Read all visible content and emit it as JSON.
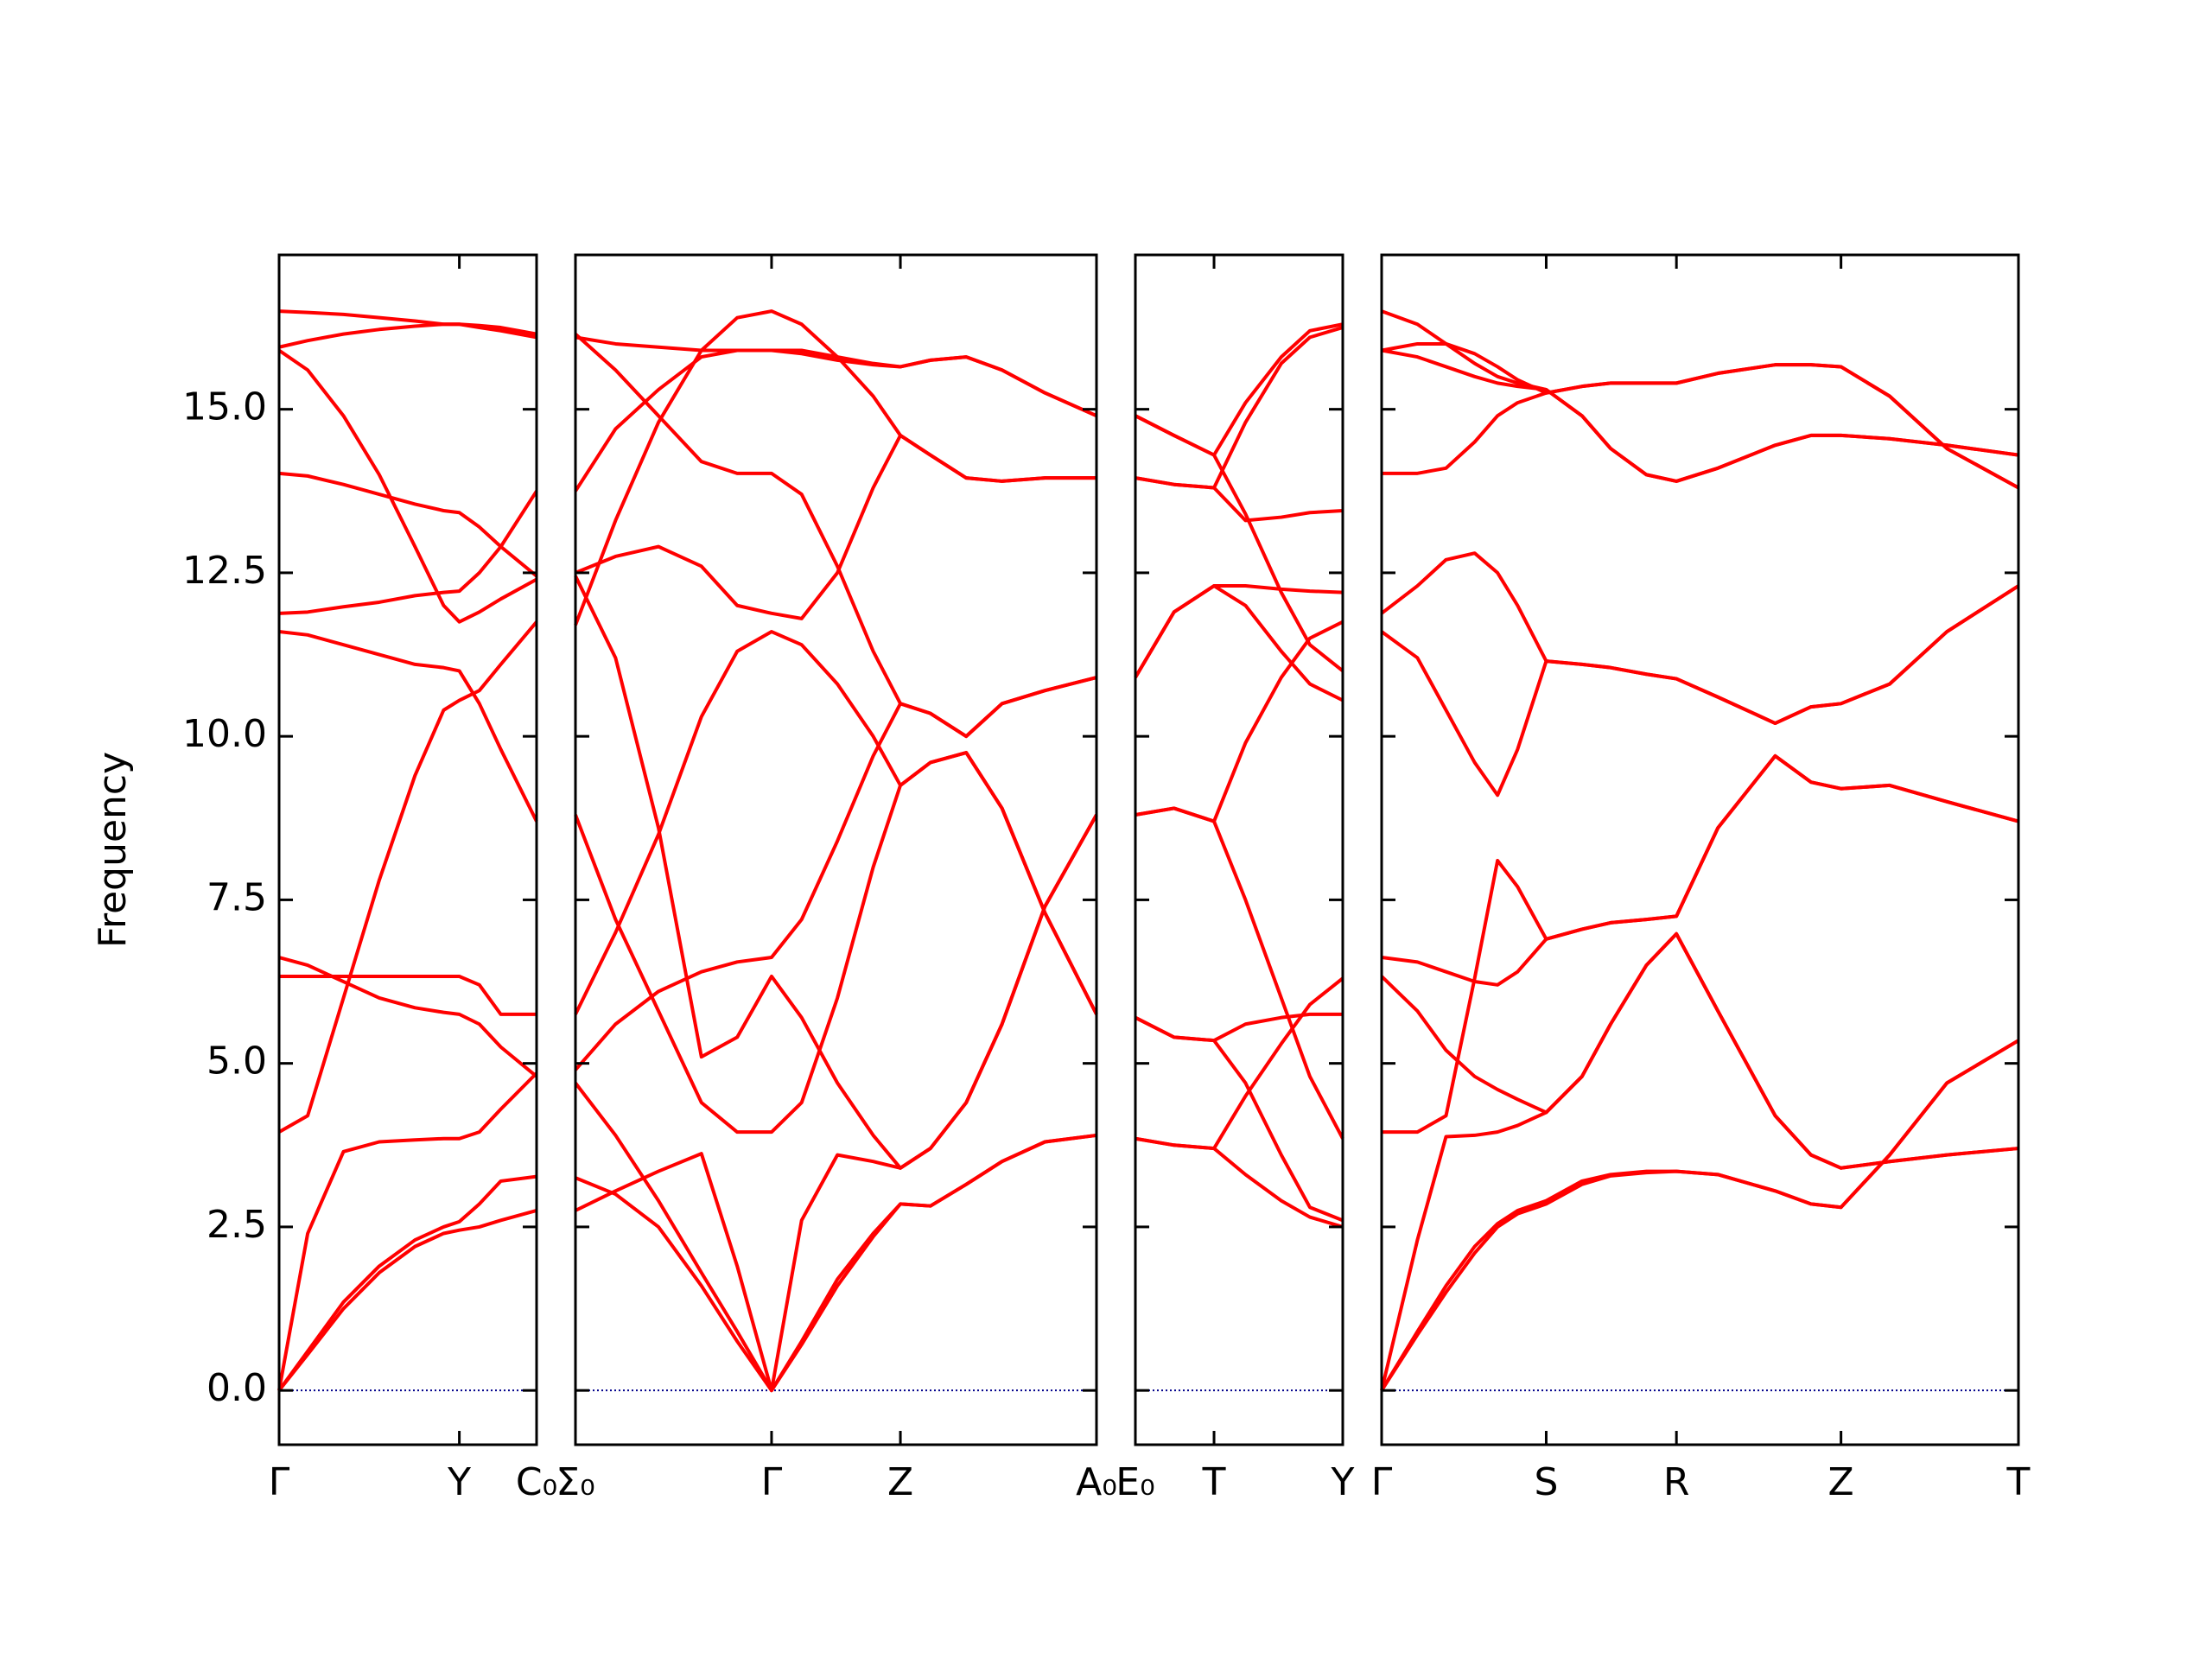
{
  "chart_data": [
    {
      "type": "line",
      "ylabel": "Frequency",
      "color": "#ff0000",
      "xlim": [
        0,
        1.8
      ],
      "ylim": [
        -0.83,
        17.36
      ],
      "xticks": [
        {
          "value": 0,
          "label": "Γ"
        },
        {
          "value": 1.26,
          "label": "Y"
        },
        {
          "value": 1.8,
          "label": "C₀"
        }
      ],
      "yticks": [
        {
          "value": 0,
          "label": "0.0"
        },
        2.5,
        {
          "value": 5,
          "label": "5.0"
        },
        7.5,
        {
          "value": 10,
          "label": "10.0"
        },
        12.5,
        {
          "value": 15,
          "label": "15.0"
        }
      ],
      "ytick_labels": true,
      "hline": {
        "y": 0,
        "color": "#00008b",
        "style": "dotted"
      },
      "x": [
        0,
        0.2,
        0.45,
        0.7,
        0.95,
        1.15,
        1.26,
        1.4,
        1.55,
        1.8
      ],
      "series": [
        {
          "values": [
            0,
            0.55,
            1.25,
            1.8,
            2.2,
            2.4,
            2.45,
            2.5,
            2.6,
            2.75
          ]
        },
        {
          "values": [
            0,
            0.6,
            1.35,
            1.9,
            2.3,
            2.5,
            2.58,
            2.85,
            3.2,
            3.27
          ]
        },
        {
          "values": [
            0,
            2.4,
            3.65,
            3.8,
            3.83,
            3.85,
            3.85,
            3.95,
            4.3,
            4.85
          ]
        },
        {
          "values": [
            3.95,
            4.2,
            6.0,
            7.8,
            9.4,
            10.4,
            10.55,
            10.7,
            11.1,
            11.75
          ]
        },
        {
          "values": [
            6.33,
            6.33,
            6.33,
            6.33,
            6.33,
            6.33,
            6.33,
            6.2,
            5.75,
            5.75
          ]
        },
        {
          "values": [
            6.62,
            6.5,
            6.25,
            6.0,
            5.85,
            5.78,
            5.75,
            5.6,
            5.25,
            4.8
          ]
        },
        {
          "values": [
            11.6,
            11.55,
            11.4,
            11.25,
            11.1,
            11.05,
            11.0,
            10.5,
            9.8,
            8.7
          ]
        },
        {
          "values": [
            11.88,
            11.9,
            11.98,
            12.05,
            12.15,
            12.2,
            12.22,
            12.5,
            12.9,
            13.75
          ]
        },
        {
          "values": [
            14.02,
            13.98,
            13.85,
            13.7,
            13.55,
            13.45,
            13.42,
            13.2,
            12.9,
            12.45
          ]
        },
        {
          "values": [
            15.9,
            15.6,
            14.9,
            14.0,
            12.9,
            12.0,
            11.75,
            11.9,
            12.1,
            12.4
          ]
        },
        {
          "values": [
            15.95,
            16.05,
            16.15,
            16.22,
            16.27,
            16.3,
            16.3,
            16.28,
            16.25,
            16.15
          ]
        },
        {
          "values": [
            16.5,
            16.48,
            16.45,
            16.4,
            16.35,
            16.3,
            16.3,
            16.25,
            16.2,
            16.1
          ]
        }
      ]
    },
    {
      "type": "line",
      "color": "#ff0000",
      "xlim": [
        0,
        3.64
      ],
      "ylim": [
        -0.83,
        17.36
      ],
      "xticks": [
        {
          "value": 0,
          "label": "Σ₀"
        },
        {
          "value": 1.37,
          "label": "Γ"
        },
        {
          "value": 2.27,
          "label": "Z"
        },
        {
          "value": 3.64,
          "label": "A₀"
        }
      ],
      "yticks": [
        0,
        2.5,
        5,
        7.5,
        10,
        12.5,
        15
      ],
      "ytick_labels": false,
      "hline": {
        "y": 0,
        "color": "#00008b",
        "style": "dotted"
      },
      "x": [
        0,
        0.28,
        0.58,
        0.88,
        1.13,
        1.37,
        1.58,
        1.83,
        2.08,
        2.27,
        2.48,
        2.73,
        2.98,
        3.28,
        3.64
      ],
      "series": [
        {
          "values": [
            2.75,
            3.05,
            3.35,
            3.62,
            1.9,
            0,
            0.75,
            1.7,
            2.4,
            2.85,
            2.82,
            3.15,
            3.5,
            3.8,
            3.9
          ]
        },
        {
          "values": [
            3.25,
            3.0,
            2.5,
            1.6,
            0.75,
            0,
            0.7,
            1.6,
            2.35,
            2.85,
            2.82,
            3.15,
            3.5,
            3.8,
            3.9
          ]
        },
        {
          "values": [
            4.7,
            3.9,
            2.9,
            1.8,
            0.9,
            0,
            2.6,
            3.6,
            3.5,
            3.4,
            3.7,
            4.4,
            5.6,
            7.4,
            8.8
          ]
        },
        {
          "values": [
            4.9,
            5.6,
            6.1,
            6.4,
            6.55,
            6.62,
            7.2,
            8.4,
            9.7,
            10.5,
            10.35,
            10.0,
            10.5,
            10.7,
            10.9
          ]
        },
        {
          "values": [
            8.8,
            7.2,
            5.8,
            4.4,
            3.95,
            3.95,
            4.4,
            6.0,
            8.0,
            9.25,
            9.6,
            9.75,
            8.9,
            7.3,
            5.75
          ]
        },
        {
          "values": [
            12.45,
            11.2,
            8.6,
            5.1,
            5.4,
            6.33,
            5.7,
            4.7,
            3.9,
            3.4,
            3.7,
            4.4,
            5.6,
            7.4,
            8.8
          ]
        },
        {
          "values": [
            5.75,
            7.0,
            8.5,
            10.3,
            11.3,
            11.6,
            11.4,
            10.8,
            10.0,
            9.25,
            9.6,
            9.75,
            8.9,
            7.3,
            5.75
          ]
        },
        {
          "values": [
            11.7,
            13.3,
            14.8,
            15.9,
            16.4,
            16.5,
            16.3,
            15.8,
            15.2,
            14.6,
            14.3,
            13.95,
            13.9,
            13.95,
            13.95
          ]
        },
        {
          "values": [
            12.5,
            12.75,
            12.9,
            12.6,
            12.0,
            11.88,
            11.8,
            12.5,
            13.8,
            14.6,
            14.3,
            13.95,
            13.9,
            13.95,
            13.95
          ]
        },
        {
          "values": [
            13.75,
            14.7,
            15.3,
            15.8,
            15.9,
            15.9,
            15.85,
            15.75,
            15.68,
            15.65,
            15.75,
            15.8,
            15.6,
            15.25,
            14.9
          ]
        },
        {
          "values": [
            16.15,
            15.6,
            14.9,
            14.2,
            14.02,
            14.02,
            13.7,
            12.6,
            11.3,
            10.5,
            10.35,
            10.0,
            10.5,
            10.7,
            10.9
          ]
        },
        {
          "values": [
            16.1,
            16.0,
            15.95,
            15.9,
            15.9,
            15.9,
            15.9,
            15.8,
            15.7,
            15.65,
            15.75,
            15.8,
            15.6,
            15.25,
            14.9
          ]
        }
      ]
    },
    {
      "type": "line",
      "color": "#ff0000",
      "xlim": [
        0,
        1.45
      ],
      "ylim": [
        -0.83,
        17.36
      ],
      "xticks": [
        {
          "value": 0,
          "label": "E₀"
        },
        {
          "value": 0.55,
          "label": "T"
        },
        {
          "value": 1.45,
          "label": "Y"
        }
      ],
      "yticks": [
        0,
        2.5,
        5,
        7.5,
        10,
        12.5,
        15
      ],
      "ytick_labels": false,
      "hline": {
        "y": 0,
        "color": "#00008b",
        "style": "dotted"
      },
      "x": [
        0,
        0.27,
        0.55,
        0.77,
        1.02,
        1.22,
        1.45
      ],
      "series": [
        {
          "values": [
            3.85,
            3.75,
            3.7,
            3.3,
            2.9,
            2.65,
            2.5
          ]
        },
        {
          "values": [
            3.85,
            3.75,
            3.7,
            4.5,
            5.3,
            5.9,
            6.3
          ]
        },
        {
          "values": [
            5.7,
            5.4,
            5.35,
            5.6,
            5.7,
            5.75,
            5.75
          ]
        },
        {
          "values": [
            5.7,
            5.4,
            5.35,
            4.7,
            3.6,
            2.8,
            2.6
          ]
        },
        {
          "values": [
            8.8,
            8.9,
            8.7,
            7.5,
            6.0,
            4.8,
            3.85
          ]
        },
        {
          "values": [
            8.8,
            8.9,
            8.7,
            9.9,
            10.9,
            11.5,
            11.75
          ]
        },
        {
          "values": [
            10.9,
            11.9,
            12.3,
            12.3,
            12.25,
            12.22,
            12.2
          ]
        },
        {
          "values": [
            10.9,
            11.9,
            12.3,
            12.0,
            11.3,
            10.8,
            10.55
          ]
        },
        {
          "values": [
            13.95,
            13.85,
            13.8,
            13.3,
            13.35,
            13.42,
            13.45
          ]
        },
        {
          "values": [
            13.95,
            13.85,
            13.8,
            14.8,
            15.7,
            16.1,
            16.25
          ]
        },
        {
          "values": [
            14.9,
            14.6,
            14.3,
            13.4,
            12.2,
            11.4,
            11.0
          ]
        },
        {
          "values": [
            14.9,
            14.6,
            14.3,
            15.1,
            15.8,
            16.2,
            16.3
          ]
        }
      ]
    },
    {
      "type": "line",
      "color": "#ff0000",
      "xlim": [
        0,
        4.45
      ],
      "ylim": [
        -0.83,
        17.36
      ],
      "xticks": [
        {
          "value": 0,
          "label": "Γ"
        },
        {
          "value": 1.15,
          "label": "S"
        },
        {
          "value": 2.06,
          "label": "R"
        },
        {
          "value": 3.21,
          "label": "Z"
        },
        {
          "value": 4.45,
          "label": "T"
        }
      ],
      "yticks": [
        0,
        2.5,
        5,
        7.5,
        10,
        12.5,
        15
      ],
      "ytick_labels": false,
      "hline": {
        "y": 0,
        "color": "#00008b",
        "style": "dotted"
      },
      "x": [
        0,
        0.25,
        0.45,
        0.65,
        0.81,
        0.95,
        1.15,
        1.4,
        1.6,
        1.85,
        2.06,
        2.35,
        2.75,
        3.0,
        3.21,
        3.55,
        3.95,
        4.45
      ],
      "series": [
        {
          "values": [
            0,
            0.9,
            1.6,
            2.2,
            2.55,
            2.75,
            2.9,
            3.2,
            3.3,
            3.35,
            3.35,
            3.3,
            3.05,
            2.85,
            2.8,
            3.6,
            4.7,
            5.35
          ]
        },
        {
          "values": [
            0,
            0.85,
            1.5,
            2.1,
            2.5,
            2.7,
            2.85,
            3.15,
            3.28,
            3.33,
            3.35,
            3.3,
            3.05,
            2.85,
            2.8,
            3.6,
            4.7,
            5.35
          ]
        },
        {
          "values": [
            0,
            2.3,
            3.88,
            3.9,
            3.95,
            4.05,
            4.25,
            4.8,
            5.6,
            6.5,
            6.98,
            5.8,
            4.2,
            3.6,
            3.4,
            3.5,
            3.6,
            3.7
          ]
        },
        {
          "values": [
            6.33,
            5.8,
            5.2,
            4.8,
            4.6,
            4.45,
            4.25,
            4.8,
            5.6,
            6.5,
            6.98,
            5.8,
            4.2,
            3.6,
            3.4,
            3.5,
            3.6,
            3.7
          ]
        },
        {
          "values": [
            3.95,
            3.95,
            4.2,
            6.3,
            8.1,
            7.7,
            6.9,
            7.05,
            7.15,
            7.2,
            7.25,
            8.6,
            9.7,
            9.3,
            9.2,
            9.25,
            9.0,
            8.7
          ]
        },
        {
          "values": [
            6.62,
            6.55,
            6.4,
            6.25,
            6.2,
            6.4,
            6.9,
            7.05,
            7.15,
            7.2,
            7.25,
            8.6,
            9.7,
            9.3,
            9.2,
            9.25,
            9.0,
            8.7
          ]
        },
        {
          "values": [
            11.6,
            11.2,
            10.4,
            9.6,
            9.1,
            9.8,
            11.15,
            11.1,
            11.05,
            10.95,
            10.88,
            10.6,
            10.2,
            10.45,
            10.5,
            10.8,
            11.6,
            12.3
          ]
        },
        {
          "values": [
            11.88,
            12.3,
            12.7,
            12.8,
            12.5,
            12.0,
            11.15,
            11.1,
            11.05,
            10.95,
            10.88,
            10.6,
            10.2,
            10.45,
            10.5,
            10.8,
            11.6,
            12.3
          ]
        },
        {
          "values": [
            14.02,
            14.02,
            14.1,
            14.5,
            14.9,
            15.1,
            15.25,
            15.35,
            15.4,
            15.4,
            15.4,
            15.55,
            15.68,
            15.68,
            15.65,
            15.2,
            14.4,
            13.8
          ]
        },
        {
          "values": [
            15.9,
            16.0,
            16.0,
            15.85,
            15.65,
            15.45,
            15.25,
            15.35,
            15.4,
            15.4,
            15.4,
            15.55,
            15.68,
            15.68,
            15.65,
            15.2,
            14.4,
            13.8
          ]
        },
        {
          "values": [
            15.9,
            15.8,
            15.65,
            15.5,
            15.4,
            15.35,
            15.3,
            14.9,
            14.4,
            14.0,
            13.9,
            14.1,
            14.45,
            14.6,
            14.6,
            14.55,
            14.45,
            14.3
          ]
        },
        {
          "values": [
            16.5,
            16.3,
            16.0,
            15.7,
            15.5,
            15.4,
            15.3,
            14.9,
            14.4,
            14.0,
            13.9,
            14.1,
            14.45,
            14.6,
            14.6,
            14.55,
            14.45,
            14.3
          ]
        }
      ]
    }
  ]
}
